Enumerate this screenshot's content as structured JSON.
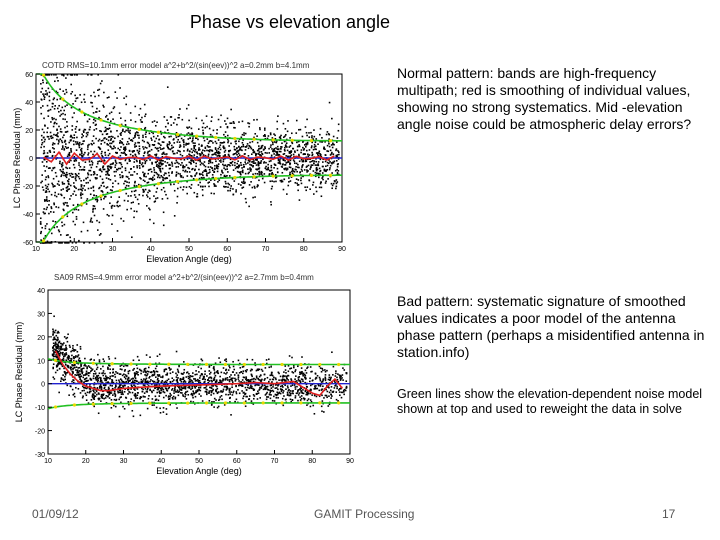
{
  "slide": {
    "title": "Phase vs elevation angle",
    "notes": [
      "Normal  pattern: bands are high-frequency multipath; red is smoothing of individual values, showing no strong systematics.  Mid -elevation angle noise could be atmospheric delay errors?",
      "Bad pattern: systematic signature of smoothed values indicates a poor model of the antenna phase pattern (perhaps a misidentified antenna in station.info)",
      "Green lines show the elevation-dependent noise model shown at top and used to reweight the data in solve"
    ],
    "footer": {
      "date": "01/09/12",
      "center": "GAMIT Processing",
      "page": "17"
    }
  },
  "chart_data": [
    {
      "type": "scatter",
      "title": "COTD RMS=10.1mm error model a^2+b^2/(sin(eev))^2 a=0.2mm b=4.1mm",
      "xlabel": "Elevation Angle (deg)",
      "ylabel": "LC Phase Residual (mm)",
      "xlim": [
        10,
        90
      ],
      "ylim": [
        -60,
        60
      ],
      "yticks": [
        -60,
        -40,
        -20,
        0,
        20,
        40,
        60
      ],
      "xticks": [
        10,
        20,
        30,
        40,
        50,
        60,
        70,
        80,
        90
      ],
      "noise_model": {
        "a": 0.2,
        "b": 4.1
      },
      "band_scale": 3,
      "spread_scale": 2.6,
      "smooth_amp": 1.5,
      "colors": {
        "points": "#000000",
        "smooth": "#e02020",
        "model": "#22c022",
        "zero": "#2020d0",
        "marker": "#e8d800"
      },
      "grid": false
    },
    {
      "type": "scatter",
      "title": "SA09 RMS=4.9mm error model a^2+b^2/(sin(eev))^2 a=2.7mm b=0.4mm",
      "xlabel": "Elevation Angle (deg)",
      "ylabel": "LC Phase Residual (mm)",
      "xlim": [
        10,
        90
      ],
      "ylim": [
        -30,
        40
      ],
      "yticks": [
        -30,
        -20,
        -10,
        0,
        10,
        20,
        30,
        40
      ],
      "xticks": [
        10,
        20,
        30,
        40,
        50,
        60,
        70,
        80,
        90
      ],
      "noise_model": {
        "a": 2.7,
        "b": 0.4
      },
      "band_scale": 3,
      "spread_scale": 1.6,
      "smooth": [
        [
          12,
          14
        ],
        [
          14,
          8
        ],
        [
          16,
          4
        ],
        [
          18,
          1
        ],
        [
          20,
          -1
        ],
        [
          22,
          -2
        ],
        [
          24,
          -3
        ],
        [
          26,
          -3
        ],
        [
          28,
          -2.5
        ],
        [
          30,
          -2
        ],
        [
          35,
          -1.5
        ],
        [
          40,
          -1
        ],
        [
          50,
          -0.5
        ],
        [
          60,
          0
        ],
        [
          65,
          0.5
        ],
        [
          70,
          0
        ],
        [
          75,
          1
        ],
        [
          80,
          -4
        ],
        [
          82,
          -5
        ],
        [
          84,
          -1
        ],
        [
          86,
          2
        ],
        [
          88,
          -2
        ]
      ],
      "colors": {
        "points": "#000000",
        "smooth": "#e02020",
        "model": "#22c022",
        "zero": "#2020d0",
        "marker": "#e8d800"
      },
      "grid": false
    }
  ]
}
